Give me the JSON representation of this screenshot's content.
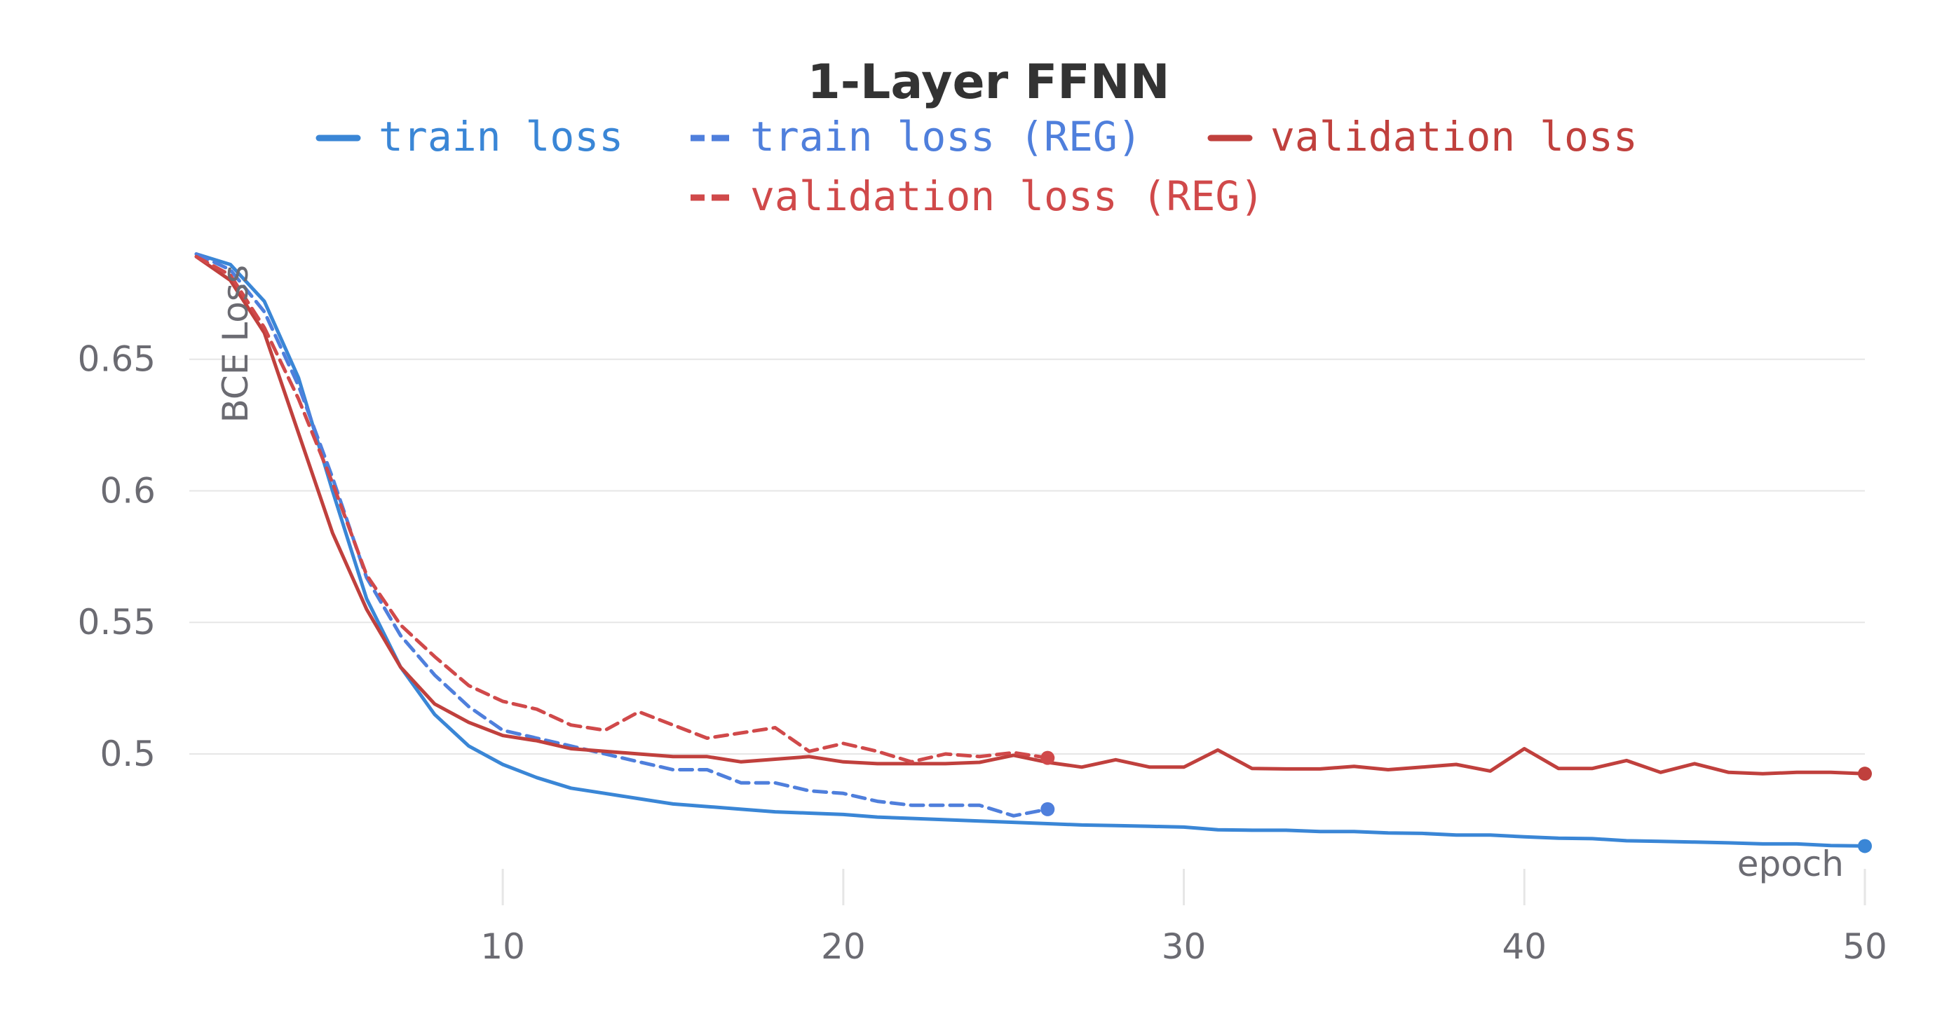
{
  "chart_data": {
    "type": "line",
    "title": "1-Layer FFNN",
    "xlabel": "epoch",
    "ylabel": "BCE Loss",
    "xlim": [
      1,
      50
    ],
    "ylim": [
      0.455,
      0.692
    ],
    "x_ticks": [
      10,
      20,
      30,
      40,
      50
    ],
    "x_tick_labels": [
      "10",
      "20",
      "30",
      "40",
      "50"
    ],
    "y_ticks": [
      0.5,
      0.55,
      0.6,
      0.65
    ],
    "y_tick_labels": [
      "0.5",
      "0.55",
      "0.6",
      "0.65"
    ],
    "grid": true,
    "legend_position": "top-center",
    "series": [
      {
        "name": "train loss",
        "color": "#3a86d6",
        "dash": "solid",
        "x": [
          1,
          2,
          3,
          4,
          5,
          6,
          7,
          8,
          9,
          10,
          11,
          12,
          13,
          14,
          15,
          16,
          17,
          18,
          19,
          20,
          21,
          22,
          23,
          24,
          25,
          26,
          27,
          28,
          29,
          30,
          31,
          32,
          33,
          34,
          35,
          36,
          37,
          38,
          39,
          40,
          41,
          42,
          43,
          44,
          45,
          46,
          47,
          48,
          49,
          50
        ],
        "y": [
          0.69,
          0.686,
          0.672,
          0.643,
          0.6,
          0.559,
          0.533,
          0.515,
          0.503,
          0.496,
          0.491,
          0.487,
          0.485,
          0.483,
          0.481,
          0.48,
          0.479,
          0.478,
          0.4775,
          0.477,
          0.476,
          0.4755,
          0.475,
          0.4745,
          0.474,
          0.4735,
          0.473,
          0.4728,
          0.4725,
          0.4722,
          0.4712,
          0.471,
          0.471,
          0.4705,
          0.4705,
          0.47,
          0.4698,
          0.4692,
          0.4692,
          0.4685,
          0.468,
          0.4678,
          0.467,
          0.4668,
          0.4665,
          0.4662,
          0.4658,
          0.4658,
          0.4652,
          0.465
        ]
      },
      {
        "name": "train loss (REG)",
        "color": "#4f7fdc",
        "dash": "dashed",
        "x": [
          1,
          2,
          3,
          4,
          5,
          6,
          7,
          8,
          9,
          10,
          11,
          12,
          13,
          14,
          15,
          16,
          17,
          18,
          19,
          20,
          21,
          22,
          23,
          24,
          25,
          26
        ],
        "y": [
          0.69,
          0.684,
          0.668,
          0.64,
          0.605,
          0.567,
          0.545,
          0.53,
          0.518,
          0.509,
          0.506,
          0.503,
          0.5,
          0.497,
          0.494,
          0.494,
          0.489,
          0.489,
          0.486,
          0.485,
          0.482,
          0.4805,
          0.4805,
          0.4805,
          0.4765,
          0.479
        ]
      },
      {
        "name": "validation loss",
        "color": "#c0403d",
        "dash": "solid",
        "x": [
          1,
          2,
          3,
          4,
          5,
          6,
          7,
          8,
          9,
          10,
          11,
          12,
          13,
          14,
          15,
          16,
          17,
          18,
          19,
          20,
          21,
          22,
          23,
          24,
          25,
          26,
          27,
          28,
          29,
          30,
          31,
          32,
          33,
          34,
          35,
          36,
          37,
          38,
          39,
          40,
          41,
          42,
          43,
          44,
          45,
          46,
          47,
          48,
          49,
          50
        ],
        "y": [
          0.689,
          0.68,
          0.66,
          0.622,
          0.584,
          0.555,
          0.533,
          0.519,
          0.512,
          0.507,
          0.505,
          0.502,
          0.501,
          0.5,
          0.499,
          0.499,
          0.497,
          0.498,
          0.499,
          0.497,
          0.4963,
          0.4963,
          0.4963,
          0.4968,
          0.4995,
          0.4968,
          0.495,
          0.4978,
          0.495,
          0.495,
          0.5015,
          0.4945,
          0.4943,
          0.4943,
          0.4953,
          0.494,
          0.495,
          0.496,
          0.4935,
          0.502,
          0.4945,
          0.4945,
          0.4975,
          0.493,
          0.4963,
          0.493,
          0.4925,
          0.493,
          0.493,
          0.4925
        ]
      },
      {
        "name": "validation loss (REG)",
        "color": "#d0494a",
        "dash": "dashed",
        "x": [
          1,
          2,
          3,
          4,
          5,
          6,
          7,
          8,
          9,
          10,
          11,
          12,
          13,
          14,
          15,
          16,
          17,
          18,
          19,
          20,
          21,
          22,
          23,
          24,
          25,
          26
        ],
        "y": [
          0.689,
          0.682,
          0.662,
          0.635,
          0.603,
          0.568,
          0.549,
          0.537,
          0.526,
          0.52,
          0.517,
          0.511,
          0.509,
          0.516,
          0.511,
          0.506,
          0.508,
          0.51,
          0.501,
          0.504,
          0.501,
          0.497,
          0.5,
          0.499,
          0.5005,
          0.4985
        ]
      }
    ]
  }
}
